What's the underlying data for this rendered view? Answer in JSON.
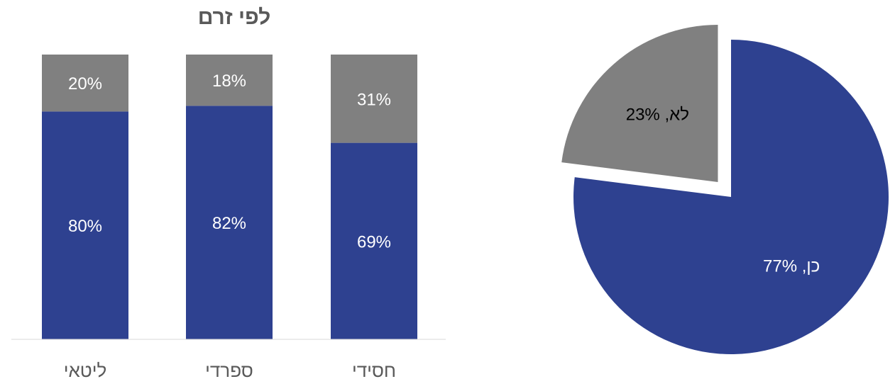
{
  "chart_data": [
    {
      "type": "bar",
      "stacked": true,
      "percent_stacked": true,
      "title": "לפי זרם",
      "xlabel": "",
      "ylabel": "",
      "ylim": [
        0,
        100
      ],
      "grid": false,
      "legend": "none",
      "categories": [
        "ליטאי",
        "ספרדי",
        "חסידי"
      ],
      "series": [
        {
          "color": "#2E4190",
          "label_color": "#ffffff",
          "values": [
            80,
            82,
            69
          ],
          "labels": [
            "80%",
            "82%",
            "69%"
          ]
        },
        {
          "color": "#808080",
          "label_color": "#ffffff",
          "values": [
            20,
            18,
            31
          ],
          "labels": [
            "20%",
            "18%",
            "31%"
          ]
        }
      ]
    },
    {
      "type": "pie",
      "title": "",
      "legend": "none",
      "slices": [
        {
          "label": "כן, 77%",
          "value": 77,
          "color": "#2E4190",
          "label_color": "#ffffff",
          "exploded": false
        },
        {
          "label": "לא, 23%",
          "value": 23,
          "color": "#808080",
          "label_color": "#000000",
          "exploded": true
        }
      ]
    }
  ]
}
